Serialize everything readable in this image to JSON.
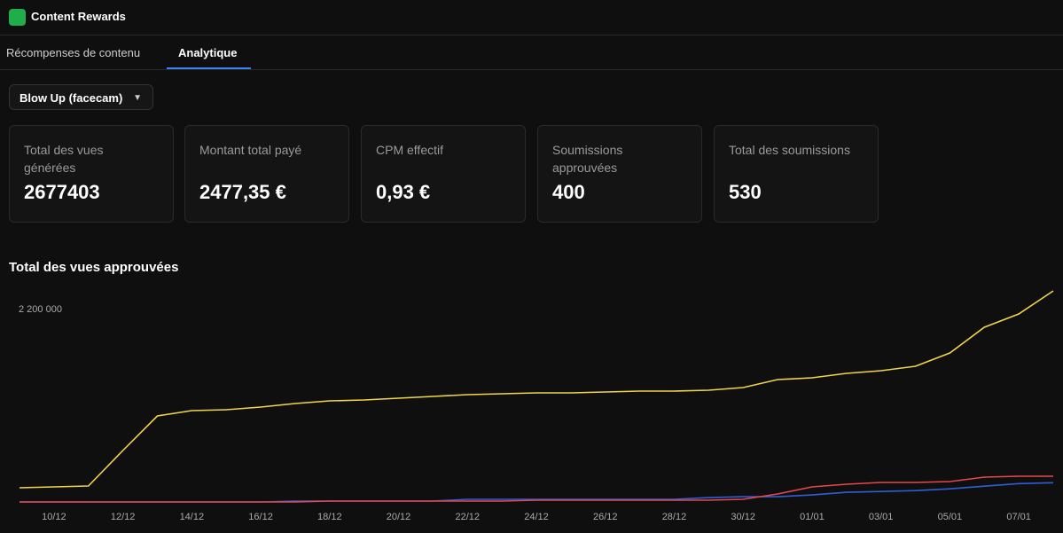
{
  "header": {
    "title": "Content Rewards"
  },
  "tabs": [
    "Récompenses de contenu",
    "Analytique"
  ],
  "filter": "Blow Up (facecam)",
  "stats": [
    {
      "label": "Total des vues générées",
      "value": 2677403
    },
    {
      "label": "Montant total payé",
      "value": "2477,35 €"
    },
    {
      "label": "CPM effectif",
      "value": "0,93 €"
    },
    {
      "label": "Soumissions approuvées",
      "value": 400
    },
    {
      "label": "Total des soumissions",
      "value": 530
    }
  ],
  "chart_data": {
    "type": "line",
    "title": "Total des vues approuvées",
    "categories": [
      null,
      "10/12",
      null,
      "12/12",
      null,
      "14/12",
      null,
      "16/12",
      null,
      "18/12",
      null,
      "20/12",
      null,
      "22/12",
      null,
      "24/12",
      null,
      "26/12",
      null,
      "28/12",
      null,
      "30/12",
      null,
      "01/01",
      null,
      "03/01",
      null,
      "05/01",
      null,
      "07/01",
      null
    ],
    "series": [
      {
        "color": "#f2d44a",
        "values": [
          162000,
          172000,
          182000,
          588000,
          983000,
          1044000,
          1054000,
          1085000,
          1125000,
          1156000,
          1166000,
          1186000,
          1206000,
          1227000,
          1237000,
          1247000,
          1247000,
          1257000,
          1267000,
          1267000,
          1277000,
          1308000,
          1399000,
          1419000,
          1470000,
          1500000,
          1551000,
          1703000,
          1997000,
          2149000,
          2413000
        ]
      },
      {
        "color": "#e5484d",
        "values": [
          0,
          0,
          0,
          0,
          0,
          0,
          0,
          0,
          0,
          10000,
          10000,
          10000,
          10000,
          10000,
          10000,
          20000,
          20000,
          20000,
          20000,
          20000,
          20000,
          30000,
          91000,
          172000,
          203000,
          223000,
          223000,
          233000,
          284000,
          294000,
          294000
        ]
      },
      {
        "color": "#2f5fd6",
        "values": [
          0,
          0,
          0,
          0,
          0,
          0,
          0,
          0,
          10000,
          10000,
          10000,
          10000,
          10000,
          30000,
          30000,
          30000,
          30000,
          30000,
          30000,
          30000,
          50000,
          60000,
          60000,
          80000,
          110000,
          120000,
          130000,
          150000,
          180000,
          210000,
          220000
        ]
      }
    ],
    "ylim": [
      0,
      2450000
    ],
    "yticks": [
      {
        "value": 2200000,
        "label": "2 200 000"
      }
    ]
  }
}
